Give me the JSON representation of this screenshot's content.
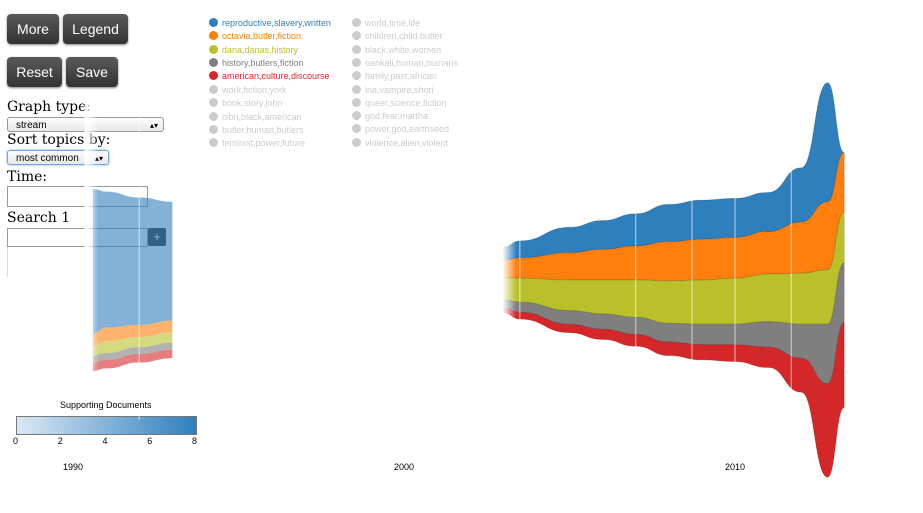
{
  "controls": {
    "more_label": "More",
    "legend_label": "Legend",
    "reset_label": "Reset",
    "save_label": "Save",
    "graph_type_label": "Graph type:",
    "graph_type_value": "stream",
    "sort_label": "Sort topics by:",
    "sort_value": "most common",
    "time_label": "Time:",
    "time_value": "",
    "search_label": "Search 1",
    "search_value": "",
    "search_add": "+"
  },
  "scale": {
    "title": "Supporting Documents",
    "ticks": [
      "0",
      "2",
      "4",
      "6",
      "8"
    ],
    "color_min": "#d9e8f5",
    "color_max": "#2f7fbd"
  },
  "legend": {
    "active": [
      {
        "label": "reproductive,slavery,written",
        "color": "#2f7fbd"
      },
      {
        "label": "octavia,butler,fiction",
        "color": "#ff7f0e"
      },
      {
        "label": "dana,danas,history",
        "color": "#b9c02a"
      },
      {
        "label": "history,butlers,fiction",
        "color": "#7f7f7f"
      },
      {
        "label": "american,culture,discourse",
        "color": "#d62728"
      }
    ],
    "inactive_col1": [
      "work,fiction,york",
      "book,story,john",
      "isbn,black,american",
      "butler,human,butlers",
      "feminist,power,future"
    ],
    "inactive_col2": [
      "world,time,life",
      "children,child,butler",
      "black,white,women",
      "oankali,human,humans",
      "family,past,african",
      "ina,vampire,shori",
      "queer,science,fiction",
      "god,fear,martha",
      "power,god,earthseed",
      "violence,alien,violent"
    ],
    "inactive_color": "#cccccc"
  },
  "chart_data": {
    "type": "area",
    "title": "",
    "x_ticks": [
      "1990",
      "2000",
      "2010"
    ],
    "series": [
      {
        "name": "reproductive,slavery,written",
        "color": "#2f7fbd",
        "points": [
          [
            1990.6,
            8.5
          ],
          [
            1991,
            8.0
          ],
          [
            1992,
            7.5
          ],
          [
            1993,
            7.0
          ],
          [
            2003,
            0.8
          ],
          [
            2003.5,
            1.0
          ],
          [
            2005,
            1.5
          ],
          [
            2006,
            1.7
          ],
          [
            2007,
            1.9
          ],
          [
            2008,
            2.2
          ],
          [
            2009,
            2.3
          ],
          [
            2010,
            2.3
          ],
          [
            2011,
            2.3
          ],
          [
            2012,
            3.2
          ],
          [
            2012.8,
            7.0
          ],
          [
            2013.3,
            0.0
          ]
        ]
      },
      {
        "name": "octavia,butler,fiction",
        "color": "#ff7f0e",
        "points": [
          [
            1990.6,
            0.7
          ],
          [
            1991,
            0.8
          ],
          [
            1992,
            0.7
          ],
          [
            1993,
            0.7
          ],
          [
            2003,
            1.0
          ],
          [
            2003.5,
            1.2
          ],
          [
            2005,
            1.6
          ],
          [
            2006,
            1.8
          ],
          [
            2007,
            2.0
          ],
          [
            2008,
            2.3
          ],
          [
            2009,
            2.4
          ],
          [
            2010,
            2.4
          ],
          [
            2011,
            2.5
          ],
          [
            2012,
            3.0
          ],
          [
            2012.8,
            4.0
          ],
          [
            2013.3,
            3.5
          ]
        ]
      },
      {
        "name": "dana,danas,history",
        "color": "#b9c02a",
        "points": [
          [
            1990.6,
            0.6
          ],
          [
            1991,
            0.7
          ],
          [
            1992,
            0.6
          ],
          [
            1993,
            0.6
          ],
          [
            2003,
            1.3
          ],
          [
            2003.5,
            1.4
          ],
          [
            2005,
            1.8
          ],
          [
            2006,
            2.0
          ],
          [
            2007,
            2.2
          ],
          [
            2008,
            2.5
          ],
          [
            2009,
            2.6
          ],
          [
            2010,
            2.7
          ],
          [
            2011,
            2.8
          ],
          [
            2012,
            3.0
          ],
          [
            2012.8,
            3.2
          ],
          [
            2013.3,
            3.0
          ]
        ]
      },
      {
        "name": "history,butlers,fiction",
        "color": "#7f7f7f",
        "points": [
          [
            1990.6,
            0.4
          ],
          [
            1991,
            0.4
          ],
          [
            1992,
            0.4
          ],
          [
            1993,
            0.4
          ],
          [
            2003,
            0.5
          ],
          [
            2003.5,
            0.6
          ],
          [
            2005,
            0.8
          ],
          [
            2006,
            0.9
          ],
          [
            2007,
            1.0
          ],
          [
            2008,
            1.1
          ],
          [
            2009,
            1.2
          ],
          [
            2010,
            1.2
          ],
          [
            2011,
            1.5
          ],
          [
            2012,
            2.0
          ],
          [
            2012.8,
            3.5
          ],
          [
            2013.3,
            3.5
          ]
        ]
      },
      {
        "name": "american,culture,discourse",
        "color": "#d62728",
        "points": [
          [
            1990.6,
            0.5
          ],
          [
            1991,
            0.5
          ],
          [
            1992,
            0.5
          ],
          [
            1993,
            0.5
          ],
          [
            2003,
            0.3
          ],
          [
            2003.5,
            0.4
          ],
          [
            2005,
            0.5
          ],
          [
            2006,
            0.6
          ],
          [
            2007,
            0.7
          ],
          [
            2008,
            0.8
          ],
          [
            2009,
            0.9
          ],
          [
            2010,
            1.0
          ],
          [
            2011,
            1.2
          ],
          [
            2012,
            2.0
          ],
          [
            2012.8,
            5.5
          ],
          [
            2013.3,
            5.0
          ]
        ]
      }
    ],
    "highlight_band": [
      1990.5,
      1993.5
    ],
    "gridlines_x": [
      1992,
      2003.5,
      2007,
      2008.7,
      2010,
      2011.7
    ]
  }
}
